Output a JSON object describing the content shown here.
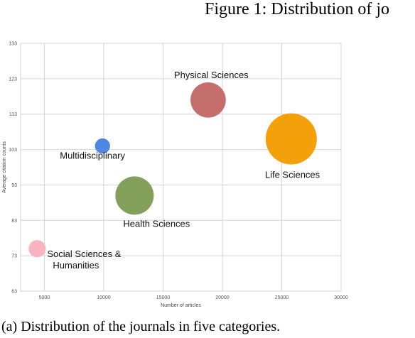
{
  "figure_title": "Figure 1: Distribution of jo",
  "caption": "(a) Distribution of the journals in five categories.",
  "chart_data": {
    "type": "bubble",
    "title": "",
    "xlabel": "Number of articles",
    "ylabel": "Average citation counts",
    "xlim": [
      3000,
      30000
    ],
    "ylim": [
      63,
      133
    ],
    "x_ticks": [
      5000,
      10000,
      15000,
      20000,
      25000,
      30000
    ],
    "x_tick_labels": [
      "5000",
      "10000",
      "15000",
      "20000",
      "25000",
      "30000"
    ],
    "y_ticks": [
      63,
      73,
      83,
      93,
      103,
      113,
      123,
      133
    ],
    "y_tick_labels": [
      "63",
      "73",
      "83",
      "93",
      "103",
      "113",
      "123",
      "133"
    ],
    "grid": true,
    "series": [
      {
        "name": "Social Sciences & Humanities",
        "label_lines": [
          "Social Sciences &",
          "Humanities"
        ],
        "x": 4400,
        "y": 75,
        "size": 900,
        "color": "#f9b3bd"
      },
      {
        "name": "Multidisciplinary",
        "label_lines": [
          "Multidisciplinary"
        ],
        "x": 9900,
        "y": 104,
        "size": 700,
        "color": "#4f86e0"
      },
      {
        "name": "Health Sciences",
        "label_lines": [
          "Health Sciences"
        ],
        "x": 12600,
        "y": 90,
        "size": 4500,
        "color": "#83a05a"
      },
      {
        "name": "Physical Sciences",
        "label_lines": [
          "Physical Sciences"
        ],
        "x": 18800,
        "y": 117,
        "size": 3800,
        "color": "#c46e6c"
      },
      {
        "name": "Life Sciences",
        "label_lines": [
          "Life Sciences"
        ],
        "x": 25800,
        "y": 106,
        "size": 8000,
        "color": "#f4a00a"
      }
    ]
  }
}
